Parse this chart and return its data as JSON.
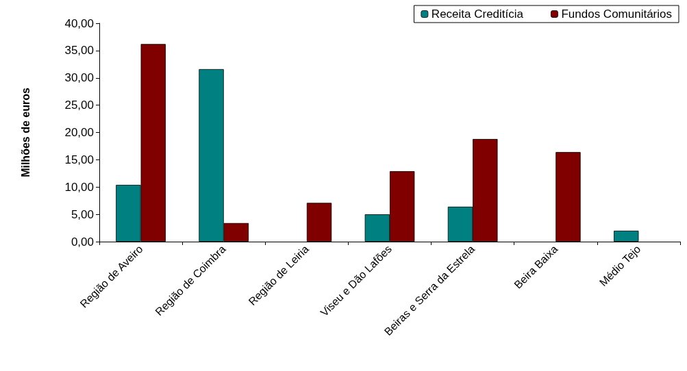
{
  "chart_data": {
    "type": "bar",
    "ylabel": "Milhões de euros",
    "categories": [
      "Região de Aveiro",
      "Região de Coimbra",
      "Região de Leiria",
      "Viseu e Dão Lafões",
      "Beiras e Serra da Estrela",
      "Beira Baixa",
      "Médio Tejo"
    ],
    "series": [
      {
        "name": "Receita Creditícia",
        "color": "#008080",
        "values": [
          10.4,
          31.6,
          null,
          5.0,
          6.4,
          null,
          2.0
        ]
      },
      {
        "name": "Fundos Comunitários",
        "color": "#800000",
        "values": [
          36.2,
          3.4,
          7.1,
          12.9,
          18.8,
          16.4,
          null
        ]
      }
    ],
    "ylim": [
      0,
      40
    ],
    "yticks": [
      {
        "value": 0,
        "label": "0,00"
      },
      {
        "value": 5,
        "label": "5,00"
      },
      {
        "value": 10,
        "label": "10,00"
      },
      {
        "value": 15,
        "label": "15,00"
      },
      {
        "value": 20,
        "label": "20,00"
      },
      {
        "value": 25,
        "label": "25,00"
      },
      {
        "value": 30,
        "label": "30,00"
      },
      {
        "value": 35,
        "label": "35,00"
      },
      {
        "value": 40,
        "label": "40,00"
      }
    ],
    "grid": false,
    "legend": "top right"
  }
}
